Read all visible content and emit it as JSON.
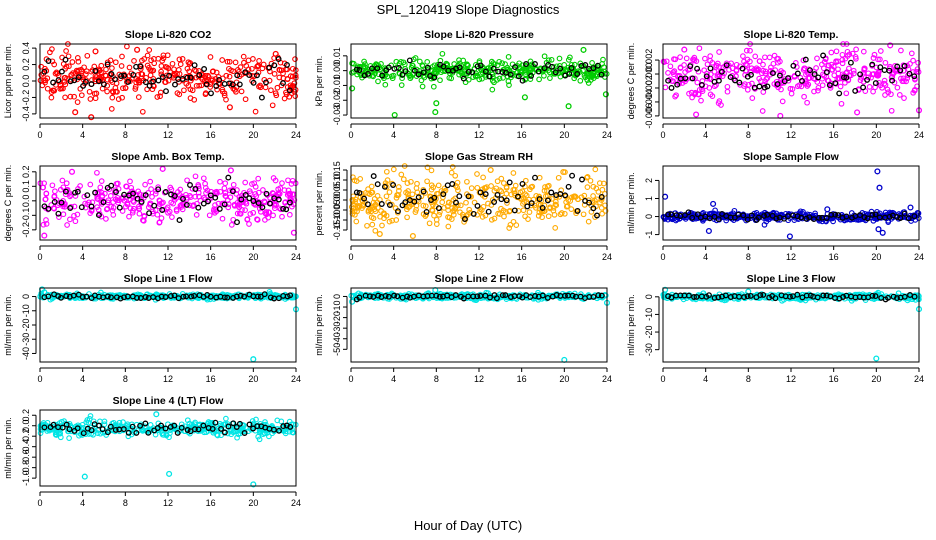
{
  "figure": {
    "title": "SPL_120419  Slope Diagnostics",
    "xlabel": "Hour of Day (UTC)"
  },
  "chart_data": [
    {
      "type": "scatter",
      "title": "Slope Li-820 CO2",
      "ylabel": "Licor ppm per min.",
      "color": "#ff0000",
      "xlim": [
        0,
        24
      ],
      "xticks": [
        0,
        4,
        8,
        12,
        16,
        20,
        24
      ],
      "ylim": [
        -0.45,
        0.45
      ],
      "yticks": [
        -0.4,
        -0.2,
        0.0,
        0.2,
        0.4
      ],
      "ytick_labels": [
        "-0.4",
        "-0.2",
        "0.0",
        "0.2",
        "0.4"
      ],
      "base": 0.05,
      "spread": 0.13,
      "outliers": [
        [
          3.3,
          -0.38
        ],
        [
          4.8,
          -0.44
        ],
        [
          5.2,
          0.36
        ],
        [
          9.1,
          0.38
        ],
        [
          17.8,
          -0.32
        ],
        [
          22.1,
          0.33
        ]
      ]
    },
    {
      "type": "scatter",
      "title": "Slope Li-820 Pressure",
      "ylabel": "kPa per min.",
      "color": "#00cc00",
      "xlim": [
        0,
        24
      ],
      "xticks": [
        0,
        4,
        8,
        12,
        16,
        20,
        24
      ],
      "ylim": [
        -0.032,
        0.018
      ],
      "yticks": [
        -0.03,
        -0.02,
        -0.01,
        0.0,
        0.01
      ],
      "ytick_labels": [
        "-0.03",
        "-0.02",
        "-0.01",
        "0.00",
        "0.01"
      ],
      "base": 0.0,
      "spread": 0.004,
      "outliers": [
        [
          4.1,
          -0.03
        ],
        [
          7.9,
          -0.028
        ],
        [
          8.0,
          -0.022
        ],
        [
          16.3,
          -0.018
        ],
        [
          20.4,
          -0.024
        ],
        [
          21.8,
          0.014
        ],
        [
          23.9,
          -0.016
        ],
        [
          0.1,
          -0.012
        ]
      ]
    },
    {
      "type": "scatter",
      "title": "Slope Li-820 Temp.",
      "ylabel": "degrees C per min.",
      "color": "#ff00ff",
      "xlim": [
        0,
        24
      ],
      "xticks": [
        0,
        4,
        8,
        12,
        16,
        20,
        24
      ],
      "ylim": [
        -0.0063,
        0.0043
      ],
      "yticks": [
        -0.006,
        -0.004,
        -0.002,
        0.0,
        0.002
      ],
      "ytick_labels": [
        "-0.006",
        "-0.004",
        "-0.002",
        "0.000",
        "0.002"
      ],
      "base": 0.0,
      "spread": 0.0017,
      "outliers": [
        [
          3.1,
          -0.0058
        ],
        [
          11.0,
          -0.006
        ],
        [
          18.2,
          -0.0055
        ],
        [
          2.0,
          0.0035
        ],
        [
          21.3,
          0.0041
        ],
        [
          24.0,
          -0.0052
        ]
      ]
    },
    {
      "type": "scatter",
      "title": "Slope Amb. Box Temp.",
      "ylabel": "degrees C per min.",
      "color": "#ff00ff",
      "xlim": [
        0,
        24
      ],
      "xticks": [
        0,
        4,
        8,
        12,
        16,
        20,
        24
      ],
      "ylim": [
        -0.27,
        0.24
      ],
      "yticks": [
        -0.2,
        -0.1,
        0.0,
        0.1,
        0.2
      ],
      "ytick_labels": [
        "-0.2",
        "-0.1",
        "0.0",
        "0.1",
        "0.2"
      ],
      "base": 0.0,
      "spread": 0.07,
      "outliers": [
        [
          0.4,
          -0.24
        ],
        [
          3.0,
          0.2
        ],
        [
          11.5,
          0.22
        ],
        [
          17.9,
          0.21
        ],
        [
          23.8,
          -0.22
        ]
      ]
    },
    {
      "type": "scatter",
      "title": "Slope Gas Stream RH",
      "ylabel": "percent per min.",
      "color": "#ffaa00",
      "xlim": [
        0,
        24
      ],
      "xticks": [
        0,
        4,
        8,
        12,
        16,
        20,
        24
      ],
      "ylim": [
        -0.2,
        0.17
      ],
      "yticks": [
        -0.15,
        -0.1,
        -0.05,
        0.0,
        0.05,
        0.1,
        0.15
      ],
      "ytick_labels": [
        "-0.15",
        "-0.10",
        "-0.05",
        "0.00",
        "0.05",
        "0.10",
        "0.15"
      ],
      "base": 0.0,
      "spread": 0.065,
      "outliers": [
        [
          5.8,
          -0.18
        ],
        [
          2.7,
          -0.17
        ],
        [
          13.1,
          0.15
        ],
        [
          19.9,
          0.14
        ]
      ]
    },
    {
      "type": "scatter",
      "title": "Slope Sample Flow",
      "ylabel": "ml/min per min.",
      "color": "#0000cc",
      "xlim": [
        0,
        24
      ],
      "xticks": [
        0,
        4,
        8,
        12,
        16,
        20,
        24
      ],
      "ylim": [
        -1.3,
        2.8
      ],
      "yticks": [
        -1,
        0,
        1,
        2
      ],
      "ytick_labels": [
        "-1",
        "0",
        "1",
        "2"
      ],
      "base": 0.0,
      "spread": 0.12,
      "outliers": [
        [
          0.2,
          1.1
        ],
        [
          4.3,
          -0.8
        ],
        [
          4.7,
          0.7
        ],
        [
          11.9,
          -1.1
        ],
        [
          20.1,
          2.5
        ],
        [
          20.3,
          1.6
        ],
        [
          20.2,
          -0.7
        ],
        [
          20.6,
          -0.9
        ],
        [
          23.2,
          0.5
        ],
        [
          15.4,
          0.4
        ]
      ]
    },
    {
      "type": "scatter",
      "title": "Slope Line 1 Flow",
      "ylabel": "ml/min per min.",
      "color": "#00e5e5",
      "xlim": [
        0,
        24
      ],
      "xticks": [
        0,
        4,
        8,
        12,
        16,
        20,
        24
      ],
      "ylim": [
        -46,
        6
      ],
      "yticks": [
        -40,
        -30,
        -20,
        -10,
        0
      ],
      "ytick_labels": [
        "-40",
        "-30",
        "-20",
        "-10",
        "0"
      ],
      "base": 0.0,
      "spread": 0.8,
      "outliers": [
        [
          0.2,
          5
        ],
        [
          0.4,
          3
        ],
        [
          20.0,
          -44
        ],
        [
          24.0,
          -9
        ]
      ]
    },
    {
      "type": "scatter",
      "title": "Slope Line 2 Flow",
      "ylabel": "ml/min per min.",
      "color": "#00e5e5",
      "xlim": [
        0,
        24
      ],
      "xticks": [
        0,
        4,
        8,
        12,
        16,
        20,
        24
      ],
      "ylim": [
        -62,
        8
      ],
      "yticks": [
        -50,
        -40,
        -30,
        -20,
        -10,
        0
      ],
      "ytick_labels": [
        "-50",
        "-40",
        "-30",
        "-20",
        "-10",
        "0"
      ],
      "base": 0.0,
      "spread": 1.2,
      "outliers": [
        [
          7.9,
          6
        ],
        [
          20.0,
          -60
        ],
        [
          24.0,
          -6
        ],
        [
          0.1,
          -5
        ]
      ]
    },
    {
      "type": "scatter",
      "title": "Slope Line 3 Flow",
      "ylabel": "ml/min per min.",
      "color": "#00e5e5",
      "xlim": [
        0,
        24
      ],
      "xticks": [
        0,
        4,
        8,
        12,
        16,
        20,
        24
      ],
      "ylim": [
        -37,
        5
      ],
      "yticks": [
        -30,
        -20,
        -10,
        0
      ],
      "ytick_labels": [
        "-30",
        "-20",
        "-10",
        "0"
      ],
      "base": 0.0,
      "spread": 0.8,
      "outliers": [
        [
          0.2,
          4
        ],
        [
          8.0,
          3
        ],
        [
          20.0,
          -35
        ],
        [
          24.0,
          -7
        ]
      ]
    },
    {
      "type": "scatter",
      "title": "Slope Line 4 (LT) Flow",
      "ylabel": "ml/min per min.",
      "color": "#00e5e5",
      "xlim": [
        0,
        24
      ],
      "xticks": [
        0,
        4,
        8,
        12,
        16,
        20,
        24
      ],
      "ylim": [
        -1.15,
        0.3
      ],
      "yticks": [
        -1.0,
        -0.8,
        -0.6,
        -0.4,
        -0.2,
        0.0,
        0.2
      ],
      "ytick_labels": [
        "-1.0",
        "-0.8",
        "-0.6",
        "-0.4",
        "-0.2",
        "0.0",
        "0.2"
      ],
      "base": -0.05,
      "spread": 0.07,
      "outliers": [
        [
          4.2,
          -0.97
        ],
        [
          12.1,
          -0.92
        ],
        [
          20.0,
          -1.12
        ],
        [
          10.9,
          0.22
        ]
      ]
    }
  ]
}
